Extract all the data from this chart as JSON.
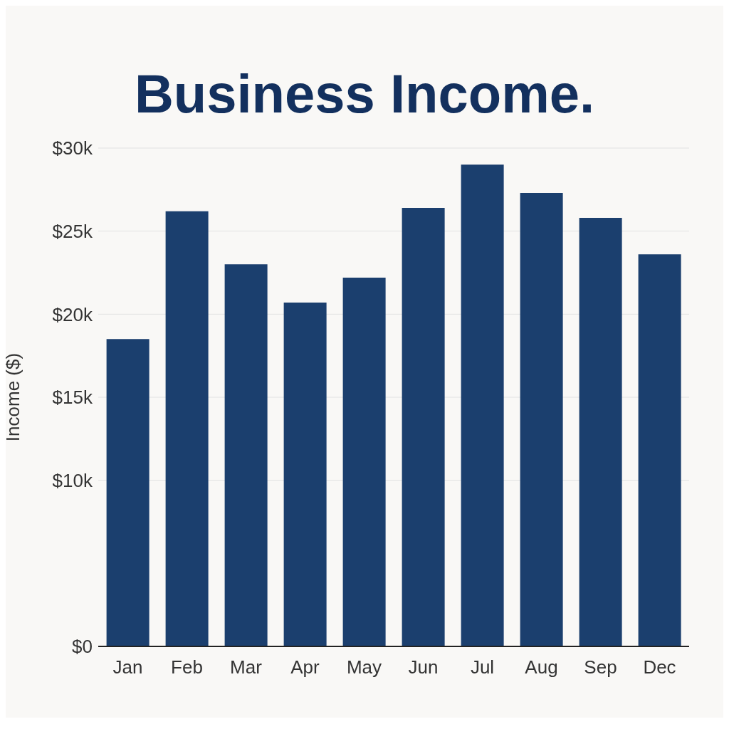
{
  "chart_data": {
    "type": "bar",
    "title": "Business Income.",
    "ylabel": "Income ($)",
    "categories": [
      "Jan",
      "Feb",
      "Mar",
      "Apr",
      "May",
      "Jun",
      "Jul",
      "Aug",
      "Sep",
      "Dec"
    ],
    "values": [
      18500,
      26200,
      23000,
      20700,
      22200,
      26400,
      29000,
      27300,
      25800,
      23600
    ],
    "color": "#1b3f6e",
    "ylim": [
      0,
      30000
    ],
    "yticks": [
      {
        "value": 0,
        "label": "$0"
      },
      {
        "value": 10000,
        "label": "$10k"
      },
      {
        "value": 15000,
        "label": "$15k"
      },
      {
        "value": 20000,
        "label": "$20k"
      },
      {
        "value": 25000,
        "label": "$25k"
      },
      {
        "value": 30000,
        "label": "$30k"
      }
    ],
    "grid": "y"
  }
}
